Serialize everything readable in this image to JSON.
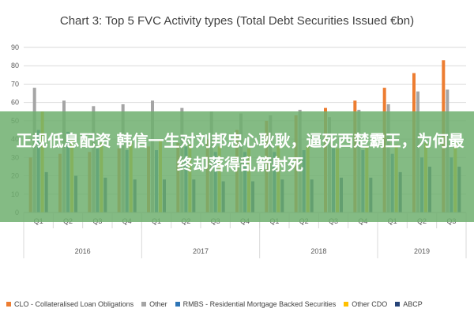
{
  "chart_data": {
    "type": "bar",
    "title": "Chart 3: Top 5 FVC Activity types (Total Debt Securities Issued €bn)",
    "categories": [
      "Q1",
      "Q2",
      "Q3",
      "Q4",
      "Q1",
      "Q2",
      "Q3",
      "Q4",
      "Q1",
      "Q2",
      "Q3",
      "Q4",
      "Q1",
      "Q2",
      "Q3"
    ],
    "groups": [
      {
        "label": "2016",
        "span": 4
      },
      {
        "label": "2017",
        "span": 4
      },
      {
        "label": "2018",
        "span": 4
      },
      {
        "label": "2019",
        "span": 3
      }
    ],
    "ylim": [
      0,
      90
    ],
    "yticks": [
      0,
      10,
      20,
      30,
      40,
      50,
      60,
      70,
      80,
      90
    ],
    "grid": true,
    "legend_position": "bottom",
    "series": [
      {
        "name": "CLO - Collateralised Loan Obligations",
        "color": "#ed7d31",
        "values": [
          30,
          32,
          33,
          35,
          36,
          38,
          40,
          45,
          50,
          53,
          57,
          61,
          68,
          76,
          83
        ]
      },
      {
        "name": "Other",
        "color": "#a5a5a5",
        "values": [
          68,
          61,
          58,
          59,
          61,
          57,
          55,
          54,
          53,
          56,
          52,
          56,
          59,
          66,
          67
        ]
      },
      {
        "name": "RMBS - Residential Mortgage Backed Securities",
        "color": "#2e75b6",
        "values": [
          45,
          44,
          35,
          34,
          34,
          36,
          33,
          33,
          33,
          34,
          35,
          34,
          32,
          30,
          30
        ]
      },
      {
        "name": "Other CDO",
        "color": "#ffc000",
        "values": [
          55,
          40,
          38,
          38,
          39,
          37,
          36,
          35,
          36,
          36,
          35,
          36,
          37,
          38,
          38
        ]
      },
      {
        "name": "ABCP",
        "color": "#264478",
        "values": [
          22,
          20,
          19,
          18,
          18,
          18,
          17,
          17,
          18,
          18,
          19,
          19,
          22,
          25,
          25
        ]
      }
    ]
  },
  "overlay": {
    "text": "正规低息配资 韩信一生对刘邦忠心耿耿，逼死西楚霸王，为何最终却落得乱箭射死"
  }
}
